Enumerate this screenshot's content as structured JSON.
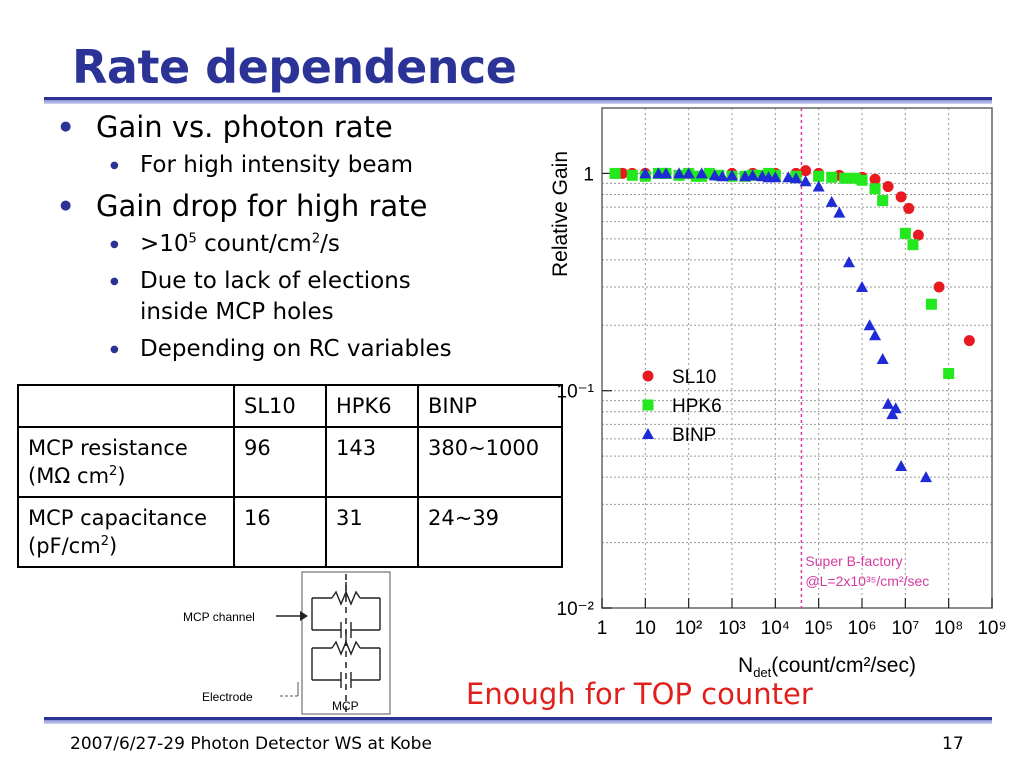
{
  "slide": {
    "title": "Rate dependence",
    "bullets": {
      "b1": "Gain vs. photon rate",
      "b1_sub1": "For high intensity beam",
      "b2": "Gain drop for high rate",
      "b2_sub1_pre": ">10",
      "b2_sub1_sup1": "5",
      "b2_sub1_mid": " count/cm",
      "b2_sub1_sup2": "2",
      "b2_sub1_post": "/s",
      "b2_sub2": "Due to lack of elections inside MCP holes",
      "b2_sub3": "Depending on RC variables"
    },
    "highlight": "Enough for TOP counter",
    "footer": {
      "left": "2007/6/27-29 Photon Detector WS at Kobe",
      "page": "17"
    }
  },
  "table": {
    "headers": [
      "",
      "SL10",
      "HPK6",
      "BINP"
    ],
    "row1": {
      "label_line1": "MCP resistance",
      "label_line2_pre": "(MΩ cm",
      "label_line2_sup": "2",
      "label_line2_post": ")",
      "values": [
        "96",
        "143",
        "380~1000"
      ]
    },
    "row2": {
      "label_line1": "MCP capacitance",
      "label_line2_pre": "(pF/cm",
      "label_line2_sup": "2",
      "label_line2_post": ")",
      "values": [
        "16",
        "31",
        "24~39"
      ]
    }
  },
  "circuit": {
    "channel_label": "MCP channel",
    "electrode_label": "Electrode",
    "mcp_label": "MCP"
  },
  "colors": {
    "title": "#2c3396",
    "highlight": "#e0201b",
    "sl10": "#e8191f",
    "hpk6": "#22e81d",
    "binp": "#1f2bd6",
    "marker_line": "#d63aa0"
  },
  "chart_data": {
    "type": "scatter",
    "title": "",
    "xlabel": "N",
    "xlabel_sub": "det",
    "xlabel_rest": "(count/cm²/sec)",
    "ylabel": "Relative Gain",
    "xscale": "log",
    "yscale": "log",
    "xlim": [
      1,
      1000000000
    ],
    "ylim": [
      0.01,
      2
    ],
    "x_tick_labels": [
      "1",
      "10",
      "10²",
      "10³",
      "10⁴",
      "10⁵",
      "10⁶",
      "10⁷",
      "10⁸",
      "10⁹"
    ],
    "y_tick_labels": [
      "1",
      "10⁻¹",
      "10⁻²"
    ],
    "grid": true,
    "legend": "mid-left",
    "annotation_line1": "Super B-factory",
    "annotation_line2": "@L=2x10³⁵/cm²/sec",
    "vline_x": 40000,
    "series": [
      {
        "name": "SL10",
        "marker": "circle",
        "x": [
          3,
          5,
          10,
          30,
          100,
          300,
          1000,
          3000,
          10000,
          30000,
          50000,
          100000,
          300000,
          1000000,
          2000000,
          4000000,
          8000000,
          12000000,
          20000000,
          60000000,
          300000000
        ],
        "y": [
          1.0,
          1.0,
          1.0,
          1.0,
          1.0,
          1.0,
          1.0,
          1.0,
          1.0,
          1.0,
          1.03,
          1.0,
          0.98,
          0.96,
          0.94,
          0.87,
          0.78,
          0.69,
          0.52,
          0.3,
          0.17
        ]
      },
      {
        "name": "HPK6",
        "marker": "square",
        "x": [
          2,
          5,
          10,
          20,
          30,
          60,
          100,
          150,
          200,
          300,
          500,
          1000,
          2000,
          3000,
          5000,
          7000,
          10000,
          30000,
          100000,
          200000,
          400000,
          700000,
          1000000,
          2000000,
          3000000,
          10000000,
          15000000,
          40000000,
          100000000
        ],
        "y": [
          1.0,
          0.98,
          0.97,
          1.0,
          1.0,
          0.98,
          1.0,
          0.97,
          0.97,
          1.0,
          0.98,
          0.97,
          0.97,
          0.98,
          0.98,
          1.0,
          0.98,
          0.97,
          0.97,
          0.96,
          0.95,
          0.95,
          0.93,
          0.85,
          0.75,
          0.53,
          0.47,
          0.25,
          0.12
        ]
      },
      {
        "name": "BINP",
        "marker": "triangle",
        "x": [
          10,
          20,
          30,
          60,
          100,
          200,
          400,
          600,
          1000,
          2000,
          3000,
          5000,
          7000,
          10000,
          20000,
          30000,
          50000,
          100000,
          200000,
          300000,
          500000,
          1000000,
          1500000,
          2000000,
          3000000,
          4000000,
          5000000,
          6000000,
          8000000,
          30000000
        ],
        "y": [
          1.0,
          1.0,
          1.0,
          1.0,
          1.0,
          1.0,
          0.98,
          0.97,
          0.98,
          0.97,
          0.98,
          0.97,
          0.96,
          0.96,
          0.96,
          0.95,
          0.92,
          0.87,
          0.74,
          0.66,
          0.39,
          0.3,
          0.2,
          0.18,
          0.14,
          0.087,
          0.078,
          0.083,
          0.045,
          0.04
        ]
      }
    ]
  }
}
